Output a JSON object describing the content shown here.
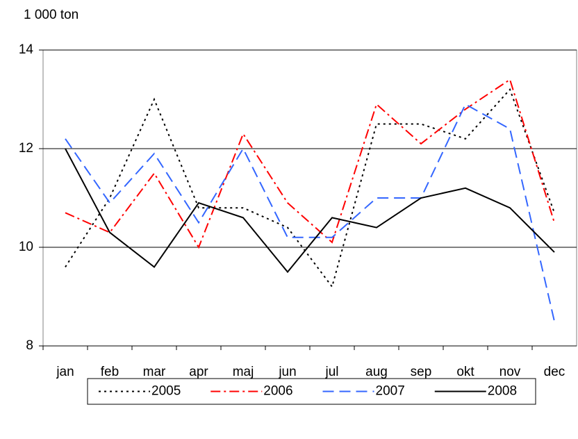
{
  "chart_data": {
    "type": "line",
    "y_axis_label": "1 000 ton",
    "categories": [
      "jan",
      "feb",
      "mar",
      "apr",
      "maj",
      "jun",
      "jul",
      "aug",
      "sep",
      "okt",
      "nov",
      "dec"
    ],
    "series": [
      {
        "name": "2005",
        "color": "#000000",
        "line_style": "dotted",
        "values": [
          9.6,
          11.0,
          13.0,
          10.8,
          10.8,
          10.4,
          9.2,
          12.5,
          12.5,
          12.2,
          13.2,
          10.7
        ]
      },
      {
        "name": "2006",
        "color": "#ff0000",
        "line_style": "dashdot",
        "values": [
          10.7,
          10.3,
          11.5,
          10.0,
          12.3,
          10.9,
          10.1,
          12.9,
          12.1,
          12.8,
          13.4,
          10.5
        ]
      },
      {
        "name": "2007",
        "color": "#3366ff",
        "line_style": "dashed",
        "values": [
          12.2,
          10.9,
          11.9,
          10.5,
          12.0,
          10.2,
          10.2,
          11.0,
          11.0,
          12.9,
          12.4,
          8.5
        ]
      },
      {
        "name": "2008",
        "color": "#000000",
        "line_style": "solid",
        "values": [
          12.0,
          10.3,
          9.6,
          10.9,
          10.6,
          9.5,
          10.6,
          10.4,
          11.0,
          11.2,
          10.8,
          9.9
        ]
      }
    ],
    "ylim": [
      8,
      14
    ],
    "yticks": [
      8,
      10,
      12,
      14
    ],
    "grid": true,
    "legend": "bottom"
  }
}
